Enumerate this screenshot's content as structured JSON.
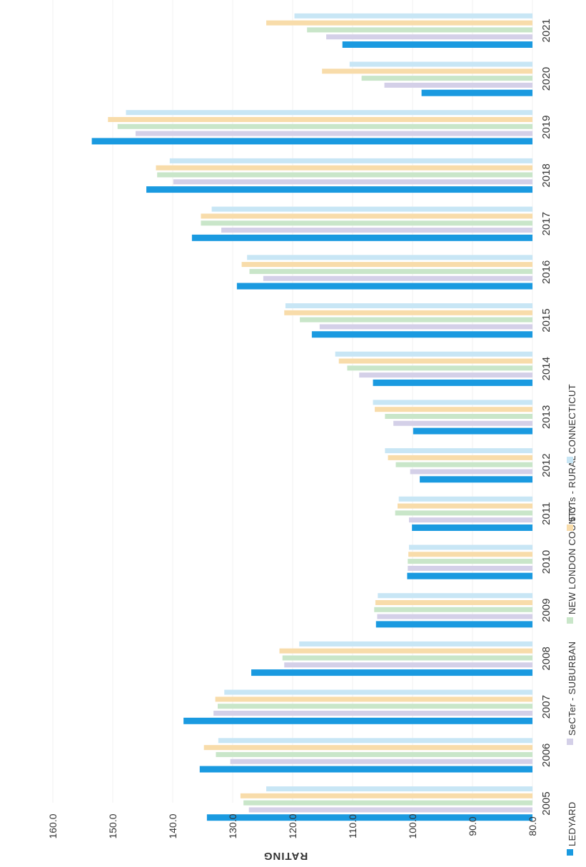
{
  "chart_data": {
    "type": "bar",
    "orientation": "horizontal bars, page rotated 90 degrees clockwise",
    "ylabel": "RATING",
    "ylim": [
      80,
      160
    ],
    "yticks": [
      "80.0",
      "90.0",
      "100.0",
      "110.0",
      "120.0",
      "130.0",
      "140.0",
      "150.0",
      "160.0"
    ],
    "categories": [
      "2005",
      "2006",
      "2007",
      "2008",
      "2009",
      "2010",
      "2011",
      "2012",
      "2013",
      "2014",
      "2015",
      "2016",
      "2017",
      "2018",
      "2019",
      "2020",
      "2021"
    ],
    "series": [
      {
        "name": "LEDYARD",
        "color": "#1a9ae0",
        "values": [
          134.3,
          135.5,
          138.2,
          126.9,
          106.1,
          100.9,
          100.1,
          98.8,
          99.9,
          106.6,
          116.8,
          129.3,
          136.8,
          144.4,
          153.5,
          98.5,
          111.7
        ]
      },
      {
        "name": "SeCTer - SUBURBAN",
        "color": "#d4d0e8",
        "values": [
          127.3,
          130.4,
          133.2,
          121.4,
          105.9,
          100.8,
          100.6,
          100.4,
          103.2,
          108.9,
          115.5,
          124.9,
          131.9,
          139.9,
          146.2,
          104.7,
          114.4
        ]
      },
      {
        "name": "NEW LONDON COUNTY",
        "color": "#c9e6c9",
        "values": [
          128.2,
          132.8,
          132.5,
          121.7,
          106.4,
          100.8,
          102.9,
          102.8,
          104.6,
          110.9,
          118.8,
          127.2,
          135.3,
          142.6,
          149.2,
          108.5,
          117.6
        ]
      },
      {
        "name": "5 CTs - RURAL",
        "color": "#f8dcaa",
        "values": [
          128.7,
          134.8,
          132.9,
          122.2,
          106.2,
          100.7,
          102.5,
          104.1,
          106.3,
          112.3,
          121.4,
          128.5,
          135.3,
          142.8,
          150.8,
          115.1,
          124.4
        ]
      },
      {
        "name": "CONNECTICUT",
        "color": "#c8e6f5",
        "values": [
          124.4,
          132.4,
          131.4,
          118.9,
          105.8,
          100.6,
          102.3,
          104.6,
          106.6,
          112.9,
          121.2,
          127.6,
          133.5,
          140.5,
          147.8,
          110.5,
          119.7
        ]
      }
    ],
    "grid": false,
    "legend_position": "bottom"
  }
}
